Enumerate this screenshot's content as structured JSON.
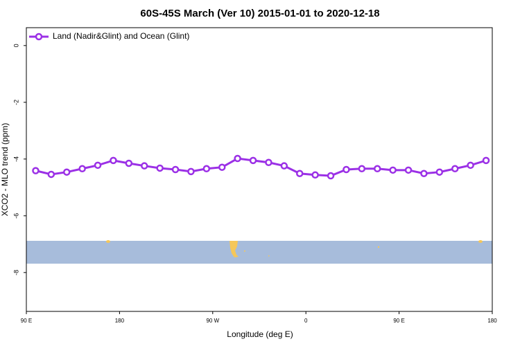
{
  "chart_data": {
    "type": "line",
    "title": "60S-45S March (Ver 10)   2015-01-01 to 2020-12-18",
    "xlabel": "Longitude (deg E)",
    "ylabel": "XCO2 - MLO trend (ppm)",
    "x": [
      99,
      114,
      129,
      144,
      159,
      174,
      189,
      204,
      219,
      234,
      249,
      264,
      279,
      294,
      309,
      324,
      339,
      354,
      369,
      384,
      399,
      414,
      429,
      444,
      459,
      474,
      489,
      504,
      519,
      534
    ],
    "series": [
      {
        "name": "Land (Nadir&Glint) and Ocean (Glint)",
        "color": "#9b30e6",
        "values": [
          -4.41,
          -4.54,
          -4.46,
          -4.34,
          -4.22,
          -4.05,
          -4.15,
          -4.24,
          -4.32,
          -4.37,
          -4.44,
          -4.34,
          -4.29,
          -3.98,
          -4.05,
          -4.12,
          -4.24,
          -4.51,
          -4.56,
          -4.59,
          -4.37,
          -4.34,
          -4.34,
          -4.39,
          -4.39,
          -4.51,
          -4.46,
          -4.34,
          -4.22,
          -4.05
        ]
      }
    ],
    "xlim": [
      90,
      540
    ],
    "xticks": [
      {
        "value": 90,
        "label": "90 E"
      },
      {
        "value": 180,
        "label": "180"
      },
      {
        "value": 270,
        "label": "90 W"
      },
      {
        "value": 360,
        "label": "0"
      },
      {
        "value": 450,
        "label": "90 E"
      },
      {
        "value": 540,
        "label": "180"
      }
    ],
    "ylim": [
      -9.37,
      0.63
    ],
    "yticks": [
      0,
      -2,
      -4,
      -6,
      -8
    ],
    "legend": "top-left"
  }
}
